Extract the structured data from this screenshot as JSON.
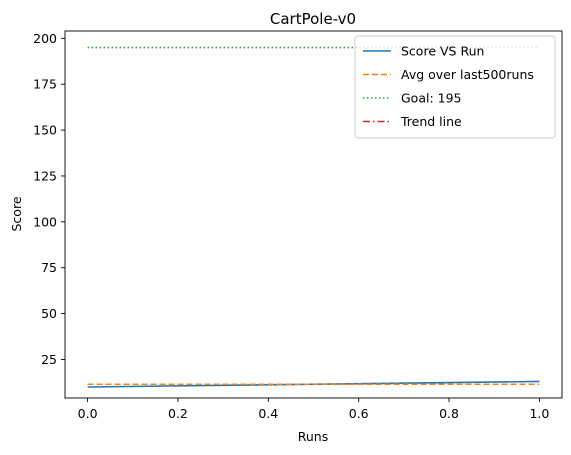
{
  "chart_data": {
    "type": "line",
    "title": "CartPole-v0",
    "xlabel": "Runs",
    "ylabel": "Score",
    "xlim": [
      -0.05,
      1.05
    ],
    "ylim": [
      4,
      204
    ],
    "xticks": [
      0.0,
      0.2,
      0.4,
      0.6,
      0.8,
      1.0
    ],
    "xtick_labels": [
      "0.0",
      "0.2",
      "0.4",
      "0.6",
      "0.8",
      "1.0"
    ],
    "yticks": [
      25,
      50,
      75,
      100,
      125,
      150,
      175,
      200
    ],
    "ytick_labels": [
      "25",
      "50",
      "75",
      "100",
      "125",
      "150",
      "175",
      "200"
    ],
    "grid": false,
    "legend_position": "top-right",
    "series": [
      {
        "name": "Score VS Run",
        "style": "solid",
        "color": "#1f77b4",
        "x": [
          0,
          1
        ],
        "y": [
          10,
          13
        ]
      },
      {
        "name": "Avg over last500runs",
        "style": "dashed",
        "color": "#ff7f0e",
        "x": [
          0,
          1
        ],
        "y": [
          11.5,
          11.5
        ]
      },
      {
        "name": "Goal: 195",
        "style": "dotted",
        "color": "#2ca02c",
        "x": [
          0,
          1
        ],
        "y": [
          195,
          195
        ]
      },
      {
        "name": "Trend line",
        "style": "dashdot",
        "color": "#d62728",
        "x": [],
        "y": []
      }
    ]
  }
}
